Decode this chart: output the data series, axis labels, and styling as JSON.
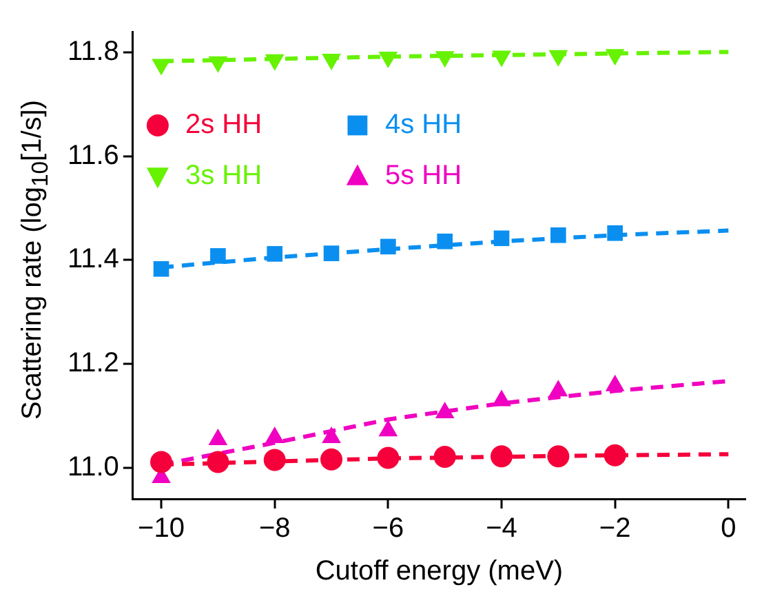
{
  "chart_data": {
    "type": "scatter",
    "xlabel": "Cutoff energy (meV)",
    "ylabel": "Scattering rate (log$_{10}$[1/s])",
    "xlim": [
      -10.5,
      0.3
    ],
    "xticks": [
      {
        "value": -10,
        "label": "−10"
      },
      {
        "value": -8,
        "label": "−8"
      },
      {
        "value": -6,
        "label": "−6"
      },
      {
        "value": -4,
        "label": "−4"
      },
      {
        "value": -2,
        "label": "−2"
      },
      0
    ],
    "ylim": [
      10.94,
      11.84
    ],
    "yticks": [
      {
        "value": 11.0,
        "label": "11.0"
      },
      {
        "value": 11.2,
        "label": "11.2"
      },
      {
        "value": 11.4,
        "label": "11.4"
      },
      {
        "value": 11.6,
        "label": "11.6"
      },
      {
        "value": 11.8,
        "label": "11.8"
      }
    ],
    "grid": false,
    "legend": "top left",
    "x": [
      -10,
      -9,
      -8,
      -7,
      -6,
      -5,
      -4,
      -3,
      -2
    ],
    "series": [
      {
        "name": "2s HH",
        "type": "scatter",
        "marker": "circle",
        "color": "#f5003a",
        "values": [
          11.011,
          11.011,
          11.015,
          11.016,
          11.019,
          11.021,
          11.022,
          11.022,
          11.024
        ]
      },
      {
        "name": "3s HH",
        "type": "scatter",
        "marker": "triangle_down",
        "color": "#66f200",
        "values": [
          11.777,
          11.782,
          11.786,
          11.787,
          11.791,
          11.792,
          11.793,
          11.794,
          11.796
        ]
      },
      {
        "name": "4s HH",
        "type": "scatter",
        "marker": "square",
        "color": "#0a8ff0",
        "values": [
          11.383,
          11.408,
          11.412,
          11.413,
          11.426,
          11.436,
          11.442,
          11.448,
          11.452
        ]
      },
      {
        "name": "5s HH",
        "type": "scatter",
        "marker": "triangle",
        "color": "#f000c0",
        "values": [
          10.981,
          11.054,
          11.058,
          11.058,
          11.071,
          11.106,
          11.129,
          11.148,
          11.158
        ]
      },
      {
        "type": "line",
        "marker": "none",
        "line_style": "dashed",
        "color": "#f5003a",
        "x": [
          -10,
          -6,
          -2,
          0
        ],
        "values": [
          11.006,
          11.018,
          11.024,
          11.026
        ]
      },
      {
        "type": "line",
        "marker": "none",
        "line_style": "dashed",
        "color": "#66f200",
        "x": [
          -10,
          -6,
          -2,
          0
        ],
        "values": [
          11.783,
          11.792,
          11.798,
          11.801
        ]
      },
      {
        "type": "line",
        "marker": "none",
        "line_style": "dashed",
        "color": "#0a8ff0",
        "x": [
          -10,
          -8,
          -6,
          -4,
          -2,
          0
        ],
        "values": [
          11.386,
          11.405,
          11.421,
          11.436,
          11.448,
          11.457
        ]
      },
      {
        "type": "line",
        "marker": "none",
        "line_style": "dashed",
        "color": "#f000c0",
        "x": [
          -10,
          -8,
          -6,
          -4,
          -2,
          0
        ],
        "values": [
          11.006,
          11.048,
          11.093,
          11.124,
          11.148,
          11.167
        ]
      }
    ]
  }
}
